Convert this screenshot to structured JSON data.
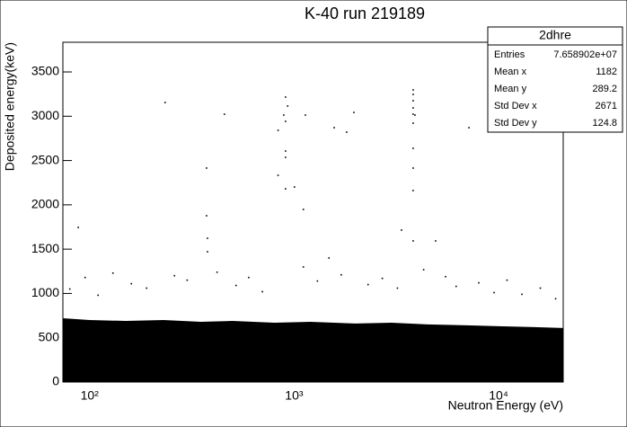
{
  "chart_data": {
    "type": "scatter",
    "title": "K-40 run 219189",
    "x_label": "Neutron Energy (eV)",
    "y_label": "Deposited energy(keV)",
    "x_log": true,
    "xlim": [
      74,
      20700
    ],
    "ylim": [
      0,
      3835
    ],
    "xticks": [
      {
        "value": 100,
        "label": "10²"
      },
      {
        "value": 1000,
        "label": "10³"
      },
      {
        "value": 10000,
        "label": "10⁴"
      }
    ],
    "yticks": [
      0,
      500,
      1000,
      1500,
      2000,
      2500,
      3000,
      3500
    ],
    "color": "#000000",
    "band": {
      "x": [
        74,
        100,
        150,
        230,
        350,
        500,
        800,
        1200,
        2000,
        3000,
        4500,
        7000,
        10000,
        15000,
        20700
      ],
      "y": [
        720,
        700,
        690,
        700,
        680,
        690,
        670,
        680,
        660,
        670,
        650,
        640,
        630,
        620,
        610
      ]
    },
    "points": {
      "x": [
        88,
        234,
        456,
        373,
        373,
        377,
        377,
        908,
        930,
        890,
        908,
        835,
        908,
        908,
        835,
        908,
        1004,
        1135,
        1110,
        1570,
        1807,
        1960,
        3820,
        3820,
        3820,
        3820,
        3820,
        3820,
        3820,
        3820,
        3820,
        3820,
        3900,
        3350,
        4920,
        7160,
        1110,
        1480,
        4300,
        80,
        95,
        110,
        130,
        160,
        190,
        260,
        300,
        420,
        520,
        600,
        700,
        1300,
        1700,
        2300,
        2700,
        3200,
        5500,
        6200,
        8000,
        9500,
        11000,
        13000,
        16000,
        19000
      ],
      "y": [
        1745,
        3155,
        3023,
        2415,
        1877,
        1623,
        1471,
        3216,
        3115,
        3013,
        2942,
        2841,
        2607,
        2536,
        2333,
        2181,
        2201,
        3013,
        1948,
        2871,
        2820,
        3043,
        3297,
        3246,
        3175,
        3094,
        3023,
        2922,
        2638,
        2415,
        2161,
        1593,
        3013,
        1715,
        1593,
        2871,
        1299,
        1400,
        1268,
        1050,
        1180,
        980,
        1230,
        1110,
        1060,
        1200,
        1150,
        1240,
        1090,
        1180,
        1020,
        1140,
        1210,
        1100,
        1170,
        1060,
        1190,
        1080,
        1120,
        1010,
        1150,
        990,
        1060,
        940
      ]
    },
    "stats": {
      "title": "2dhre",
      "rows": [
        [
          "Entries",
          "7.658902e+07"
        ],
        [
          "Mean x",
          "1182"
        ],
        [
          "Mean y",
          "289.2"
        ],
        [
          "Std Dev x",
          "2671"
        ],
        [
          "Std Dev y",
          "124.8"
        ]
      ]
    }
  }
}
